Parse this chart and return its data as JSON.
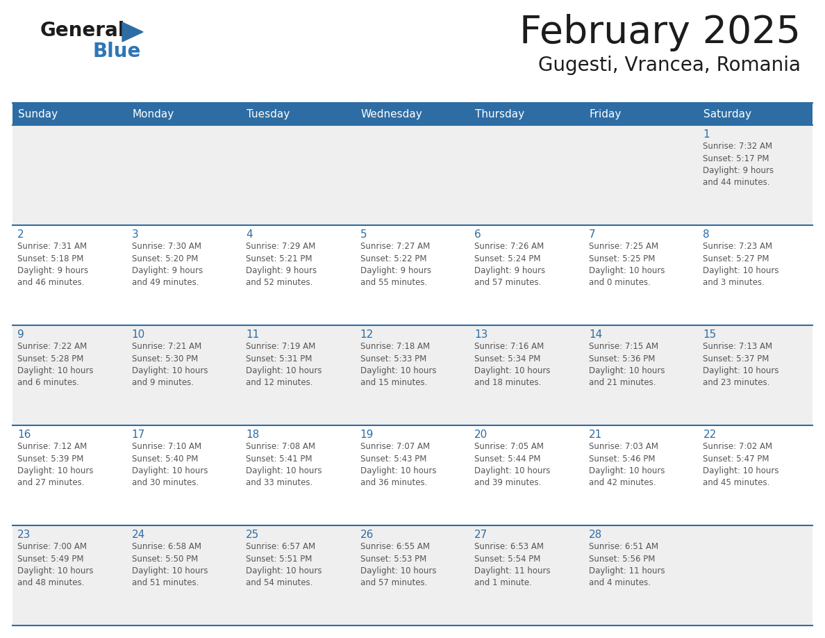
{
  "title": "February 2025",
  "subtitle": "Gugesti, Vrancea, Romania",
  "header_bg": "#2E6DA4",
  "header_text_color": "#FFFFFF",
  "cell_bg_gray": "#EFEFEF",
  "cell_bg_white": "#FFFFFF",
  "day_number_color": "#2E6DA4",
  "info_text_color": "#555555",
  "line_color": "#2E6DA4",
  "days_of_week": [
    "Sunday",
    "Monday",
    "Tuesday",
    "Wednesday",
    "Thursday",
    "Friday",
    "Saturday"
  ],
  "calendar_data": [
    [
      null,
      null,
      null,
      null,
      null,
      null,
      {
        "day": 1,
        "sunrise": "7:32 AM",
        "sunset": "5:17 PM",
        "daylight": "9 hours\nand 44 minutes."
      }
    ],
    [
      {
        "day": 2,
        "sunrise": "7:31 AM",
        "sunset": "5:18 PM",
        "daylight": "9 hours\nand 46 minutes."
      },
      {
        "day": 3,
        "sunrise": "7:30 AM",
        "sunset": "5:20 PM",
        "daylight": "9 hours\nand 49 minutes."
      },
      {
        "day": 4,
        "sunrise": "7:29 AM",
        "sunset": "5:21 PM",
        "daylight": "9 hours\nand 52 minutes."
      },
      {
        "day": 5,
        "sunrise": "7:27 AM",
        "sunset": "5:22 PM",
        "daylight": "9 hours\nand 55 minutes."
      },
      {
        "day": 6,
        "sunrise": "7:26 AM",
        "sunset": "5:24 PM",
        "daylight": "9 hours\nand 57 minutes."
      },
      {
        "day": 7,
        "sunrise": "7:25 AM",
        "sunset": "5:25 PM",
        "daylight": "10 hours\nand 0 minutes."
      },
      {
        "day": 8,
        "sunrise": "7:23 AM",
        "sunset": "5:27 PM",
        "daylight": "10 hours\nand 3 minutes."
      }
    ],
    [
      {
        "day": 9,
        "sunrise": "7:22 AM",
        "sunset": "5:28 PM",
        "daylight": "10 hours\nand 6 minutes."
      },
      {
        "day": 10,
        "sunrise": "7:21 AM",
        "sunset": "5:30 PM",
        "daylight": "10 hours\nand 9 minutes."
      },
      {
        "day": 11,
        "sunrise": "7:19 AM",
        "sunset": "5:31 PM",
        "daylight": "10 hours\nand 12 minutes."
      },
      {
        "day": 12,
        "sunrise": "7:18 AM",
        "sunset": "5:33 PM",
        "daylight": "10 hours\nand 15 minutes."
      },
      {
        "day": 13,
        "sunrise": "7:16 AM",
        "sunset": "5:34 PM",
        "daylight": "10 hours\nand 18 minutes."
      },
      {
        "day": 14,
        "sunrise": "7:15 AM",
        "sunset": "5:36 PM",
        "daylight": "10 hours\nand 21 minutes."
      },
      {
        "day": 15,
        "sunrise": "7:13 AM",
        "sunset": "5:37 PM",
        "daylight": "10 hours\nand 23 minutes."
      }
    ],
    [
      {
        "day": 16,
        "sunrise": "7:12 AM",
        "sunset": "5:39 PM",
        "daylight": "10 hours\nand 27 minutes."
      },
      {
        "day": 17,
        "sunrise": "7:10 AM",
        "sunset": "5:40 PM",
        "daylight": "10 hours\nand 30 minutes."
      },
      {
        "day": 18,
        "sunrise": "7:08 AM",
        "sunset": "5:41 PM",
        "daylight": "10 hours\nand 33 minutes."
      },
      {
        "day": 19,
        "sunrise": "7:07 AM",
        "sunset": "5:43 PM",
        "daylight": "10 hours\nand 36 minutes."
      },
      {
        "day": 20,
        "sunrise": "7:05 AM",
        "sunset": "5:44 PM",
        "daylight": "10 hours\nand 39 minutes."
      },
      {
        "day": 21,
        "sunrise": "7:03 AM",
        "sunset": "5:46 PM",
        "daylight": "10 hours\nand 42 minutes."
      },
      {
        "day": 22,
        "sunrise": "7:02 AM",
        "sunset": "5:47 PM",
        "daylight": "10 hours\nand 45 minutes."
      }
    ],
    [
      {
        "day": 23,
        "sunrise": "7:00 AM",
        "sunset": "5:49 PM",
        "daylight": "10 hours\nand 48 minutes."
      },
      {
        "day": 24,
        "sunrise": "6:58 AM",
        "sunset": "5:50 PM",
        "daylight": "10 hours\nand 51 minutes."
      },
      {
        "day": 25,
        "sunrise": "6:57 AM",
        "sunset": "5:51 PM",
        "daylight": "10 hours\nand 54 minutes."
      },
      {
        "day": 26,
        "sunrise": "6:55 AM",
        "sunset": "5:53 PM",
        "daylight": "10 hours\nand 57 minutes."
      },
      {
        "day": 27,
        "sunrise": "6:53 AM",
        "sunset": "5:54 PM",
        "daylight": "11 hours\nand 1 minute."
      },
      {
        "day": 28,
        "sunrise": "6:51 AM",
        "sunset": "5:56 PM",
        "daylight": "11 hours\nand 4 minutes."
      },
      null
    ]
  ]
}
